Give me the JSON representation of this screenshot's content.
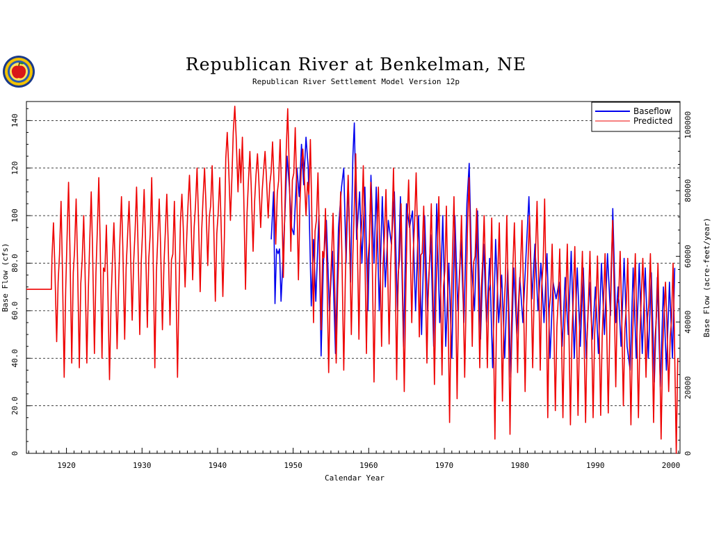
{
  "chart_data": {
    "type": "line",
    "title": "Republican River at Benkelman, NE",
    "subtitle": "Republican River Settlement Model Version 12p",
    "xlabel": "Calendar Year",
    "ylabel_left": "Base Flow (cfs)",
    "ylabel_right": "Base Flow (acre-feet/year)",
    "xlim": [
      1914.7,
      2001.2
    ],
    "ylim": [
      0,
      148
    ],
    "xticks": [
      "1920",
      "1930",
      "1940",
      "1950",
      "1960",
      "1970",
      "1980",
      "1990",
      "2000"
    ],
    "yticks": [
      "0",
      "20.0",
      "40.0",
      "60.0",
      "80.0",
      "100",
      "120",
      "140"
    ],
    "yticks_right": [
      "0",
      "20000",
      "40000",
      "60000",
      "80000",
      "100000"
    ],
    "grid": "horizontal dashed",
    "legend_position": "top-right",
    "series": [
      {
        "name": "Baseflow",
        "color": "#0000ee",
        "points": [
          [
            1947.1,
            90
          ],
          [
            1947.4,
            110
          ],
          [
            1947.6,
            63
          ],
          [
            1947.8,
            86
          ],
          [
            1948.0,
            84
          ],
          [
            1948.2,
            86
          ],
          [
            1948.4,
            64
          ],
          [
            1948.6,
            78
          ],
          [
            1948.9,
            100
          ],
          [
            1949.2,
            125
          ],
          [
            1949.5,
            112
          ],
          [
            1949.8,
            95
          ],
          [
            1950.1,
            92
          ],
          [
            1950.5,
            120
          ],
          [
            1950.8,
            108
          ],
          [
            1951.1,
            130
          ],
          [
            1951.4,
            113
          ],
          [
            1951.7,
            133
          ],
          [
            1952.0,
            120
          ],
          [
            1952.4,
            62
          ],
          [
            1952.7,
            90
          ],
          [
            1953.0,
            64
          ],
          [
            1953.4,
            100
          ],
          [
            1953.7,
            41
          ],
          [
            1954.0,
            80
          ],
          [
            1954.4,
            98
          ],
          [
            1954.8,
            60
          ],
          [
            1955.2,
            85
          ],
          [
            1955.6,
            42
          ],
          [
            1956.0,
            95
          ],
          [
            1956.4,
            112
          ],
          [
            1956.7,
            120
          ],
          [
            1957.0,
            80
          ],
          [
            1957.3,
            115
          ],
          [
            1957.6,
            72
          ],
          [
            1957.9,
            125
          ],
          [
            1958.1,
            139
          ],
          [
            1958.4,
            90
          ],
          [
            1958.8,
            110
          ],
          [
            1959.1,
            80
          ],
          [
            1959.5,
            112
          ],
          [
            1959.9,
            60
          ],
          [
            1960.3,
            117
          ],
          [
            1960.7,
            80
          ],
          [
            1961.0,
            112
          ],
          [
            1961.4,
            60
          ],
          [
            1961.8,
            108
          ],
          [
            1962.2,
            70
          ],
          [
            1962.6,
            98
          ],
          [
            1963.0,
            88
          ],
          [
            1963.4,
            110
          ],
          [
            1963.8,
            60
          ],
          [
            1964.2,
            108
          ],
          [
            1964.6,
            45
          ],
          [
            1965.0,
            105
          ],
          [
            1965.4,
            95
          ],
          [
            1965.8,
            102
          ],
          [
            1966.2,
            60
          ],
          [
            1966.6,
            100
          ],
          [
            1967.0,
            50
          ],
          [
            1967.4,
            100
          ],
          [
            1967.8,
            60
          ],
          [
            1968.2,
            92
          ],
          [
            1968.6,
            45
          ],
          [
            1969.0,
            105
          ],
          [
            1969.4,
            55
          ],
          [
            1969.8,
            100
          ],
          [
            1970.2,
            45
          ],
          [
            1970.6,
            80
          ],
          [
            1971.0,
            40
          ],
          [
            1971.4,
            100
          ],
          [
            1971.8,
            60
          ],
          [
            1972.2,
            90
          ],
          [
            1972.6,
            55
          ],
          [
            1973.0,
            105
          ],
          [
            1973.3,
            122
          ],
          [
            1973.6,
            80
          ],
          [
            1974.0,
            60
          ],
          [
            1974.4,
            102
          ],
          [
            1974.8,
            48
          ],
          [
            1975.2,
            88
          ],
          [
            1975.6,
            55
          ],
          [
            1976.0,
            82
          ],
          [
            1976.4,
            36
          ],
          [
            1976.8,
            90
          ],
          [
            1977.2,
            55
          ],
          [
            1977.6,
            75
          ],
          [
            1978.0,
            40
          ],
          [
            1978.4,
            78
          ],
          [
            1978.8,
            32
          ],
          [
            1979.2,
            78
          ],
          [
            1979.6,
            50
          ],
          [
            1980.0,
            74
          ],
          [
            1980.4,
            55
          ],
          [
            1980.8,
            82
          ],
          [
            1981.2,
            108
          ],
          [
            1981.6,
            65
          ],
          [
            1982.0,
            88
          ],
          [
            1982.4,
            60
          ],
          [
            1982.8,
            80
          ],
          [
            1983.2,
            55
          ],
          [
            1983.6,
            84
          ],
          [
            1984.0,
            40
          ],
          [
            1984.4,
            72
          ],
          [
            1984.8,
            65
          ],
          [
            1985.2,
            72
          ],
          [
            1985.6,
            45
          ],
          [
            1986.0,
            74
          ],
          [
            1986.4,
            50
          ],
          [
            1986.8,
            85
          ],
          [
            1987.2,
            40
          ],
          [
            1987.6,
            78
          ],
          [
            1988.0,
            45
          ],
          [
            1988.4,
            78
          ],
          [
            1988.8,
            40
          ],
          [
            1989.2,
            72
          ],
          [
            1989.6,
            48
          ],
          [
            1990.0,
            70
          ],
          [
            1990.4,
            42
          ],
          [
            1990.8,
            80
          ],
          [
            1991.2,
            50
          ],
          [
            1991.6,
            84
          ],
          [
            1992.0,
            58
          ],
          [
            1992.3,
            103
          ],
          [
            1992.7,
            55
          ],
          [
            1993.0,
            70
          ],
          [
            1993.4,
            45
          ],
          [
            1993.8,
            82
          ],
          [
            1994.2,
            45
          ],
          [
            1994.6,
            35
          ],
          [
            1995.0,
            78
          ],
          [
            1995.4,
            40
          ],
          [
            1995.8,
            80
          ],
          [
            1996.2,
            42
          ],
          [
            1996.6,
            78
          ],
          [
            1997.0,
            40
          ],
          [
            1997.4,
            76
          ],
          [
            1997.8,
            30
          ],
          [
            1998.2,
            74
          ],
          [
            1998.6,
            28
          ],
          [
            1999.0,
            70
          ],
          [
            1999.4,
            35
          ],
          [
            1999.8,
            72
          ],
          [
            2000.2,
            40
          ],
          [
            2000.5,
            78
          ]
        ]
      },
      {
        "name": "Predicted",
        "color": "#ee0000",
        "annual_peaks": [
          [
            1918,
            97,
            47
          ],
          [
            1919,
            106,
            32
          ],
          [
            1920,
            114,
            38
          ],
          [
            1921,
            107,
            36
          ],
          [
            1922,
            100,
            38
          ],
          [
            1923,
            110,
            42
          ],
          [
            1924,
            116,
            40
          ],
          [
            1925,
            96,
            31
          ],
          [
            1926,
            97,
            44
          ],
          [
            1927,
            108,
            48
          ],
          [
            1928,
            106,
            56
          ],
          [
            1929,
            112,
            50
          ],
          [
            1930,
            111,
            53
          ],
          [
            1931,
            116,
            36
          ],
          [
            1932,
            107,
            52
          ],
          [
            1933,
            109,
            54
          ],
          [
            1934,
            106,
            32
          ],
          [
            1935,
            109,
            70
          ],
          [
            1936,
            117,
            73
          ],
          [
            1937,
            120,
            68
          ],
          [
            1938,
            120,
            79
          ],
          [
            1939,
            121,
            64
          ],
          [
            1940,
            116,
            66
          ],
          [
            1941,
            135,
            98
          ],
          [
            1942,
            146,
            110
          ],
          [
            1943,
            133,
            69
          ],
          [
            1944,
            127,
            85
          ],
          [
            1945,
            126,
            95
          ],
          [
            1946,
            127,
            99
          ],
          [
            1947,
            131,
            88
          ],
          [
            1948,
            132,
            74
          ],
          [
            1949,
            145,
            85
          ],
          [
            1950,
            137,
            73
          ],
          [
            1951,
            128,
            100
          ],
          [
            1952,
            132,
            55
          ],
          [
            1953,
            118,
            52
          ],
          [
            1954,
            103,
            34
          ],
          [
            1955,
            101,
            38
          ],
          [
            1956,
            110,
            35
          ],
          [
            1957,
            117,
            50
          ],
          [
            1958,
            126,
            48
          ],
          [
            1959,
            121,
            42
          ],
          [
            1960,
            114,
            30
          ],
          [
            1961,
            112,
            45
          ],
          [
            1962,
            111,
            46
          ],
          [
            1963,
            120,
            31
          ],
          [
            1964,
            105,
            26
          ],
          [
            1965,
            115,
            55
          ],
          [
            1966,
            118,
            49
          ],
          [
            1967,
            104,
            38
          ],
          [
            1968,
            105,
            29
          ],
          [
            1969,
            108,
            33
          ],
          [
            1970,
            104,
            13
          ],
          [
            1971,
            108,
            23
          ],
          [
            1972,
            100,
            32
          ],
          [
            1973,
            116,
            45
          ],
          [
            1974,
            103,
            36
          ],
          [
            1975,
            100,
            36
          ],
          [
            1976,
            99,
            6
          ],
          [
            1977,
            97,
            22
          ],
          [
            1978,
            100,
            8
          ],
          [
            1979,
            97,
            34
          ],
          [
            1980,
            98,
            26
          ],
          [
            1981,
            100,
            36
          ],
          [
            1982,
            106,
            35
          ],
          [
            1983,
            107,
            15
          ],
          [
            1984,
            88,
            18
          ],
          [
            1985,
            86,
            15
          ],
          [
            1986,
            88,
            12
          ],
          [
            1987,
            87,
            16
          ],
          [
            1988,
            85,
            13
          ],
          [
            1989,
            85,
            15
          ],
          [
            1990,
            83,
            16
          ],
          [
            1991,
            84,
            17
          ],
          [
            1992,
            98,
            28
          ],
          [
            1993,
            85,
            20
          ],
          [
            1994,
            82,
            12
          ],
          [
            1995,
            84,
            15
          ],
          [
            1996,
            82,
            32
          ],
          [
            1997,
            84,
            13
          ],
          [
            1998,
            80,
            6
          ],
          [
            1999,
            72,
            26
          ],
          [
            2000,
            80,
            0
          ]
        ],
        "pre_1918_constant": 69
      }
    ]
  },
  "legend": {
    "baseflow": "Baseflow",
    "predicted": "Predicted"
  }
}
